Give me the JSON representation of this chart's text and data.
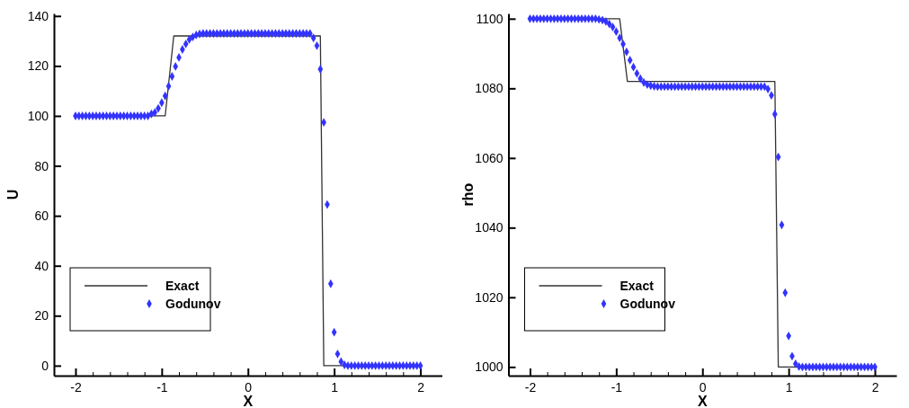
{
  "chart_data": [
    {
      "type": "scatter",
      "xlabel": "X",
      "ylabel": "U",
      "xlim": [
        -2.25,
        2.25
      ],
      "ylim": [
        -4,
        141
      ],
      "xticks": [
        -2,
        {
          "value": -1.8,
          "label": null
        },
        {
          "value": -1.6,
          "label": null
        },
        {
          "value": -1.4,
          "label": null
        },
        {
          "value": -1.2,
          "label": null
        },
        -1,
        {
          "value": -0.8,
          "label": null
        },
        {
          "value": -0.6,
          "label": null
        },
        {
          "value": -0.4,
          "label": null
        },
        {
          "value": -0.2,
          "label": null
        },
        0,
        {
          "value": 0.2,
          "label": null
        },
        {
          "value": 0.4,
          "label": null
        },
        {
          "value": 0.6,
          "label": null
        },
        {
          "value": 0.8,
          "label": null
        },
        1,
        {
          "value": 1.2,
          "label": null
        },
        {
          "value": 1.4,
          "label": null
        },
        {
          "value": 1.6,
          "label": null
        },
        {
          "value": 1.8,
          "label": null
        },
        2
      ],
      "yticks": [
        0,
        20,
        40,
        60,
        80,
        100,
        120,
        140
      ],
      "legend": "bottom left",
      "grid": false,
      "series": [
        {
          "name": "Exact",
          "type": "line",
          "color": "#333333",
          "marker": "none",
          "line_style": "solid",
          "x": [
            -2,
            -0.96,
            -0.86,
            0.84,
            0.88,
            2
          ],
          "values": [
            100,
            100,
            132,
            132,
            0,
            0
          ]
        },
        {
          "name": "Godunov",
          "color": "#3333ff",
          "marker": "diamond",
          "x": [
            -2,
            -1.96,
            -1.92,
            -1.88,
            -1.84,
            -1.8,
            -1.76,
            -1.72,
            -1.68,
            -1.64,
            -1.6,
            -1.56,
            -1.52,
            -1.48,
            -1.44,
            -1.4,
            -1.36,
            -1.32,
            -1.28,
            -1.24,
            -1.2,
            -1.16,
            -1.12,
            -1.08,
            -1.04,
            -1,
            -0.96,
            -0.92,
            -0.88,
            -0.84,
            -0.8,
            -0.76,
            -0.72,
            -0.68,
            -0.64,
            -0.6,
            -0.56,
            -0.52,
            -0.48,
            -0.44,
            -0.4,
            -0.36,
            -0.32,
            -0.28,
            -0.24,
            -0.2,
            -0.16,
            -0.12,
            -0.08,
            -0.04,
            0,
            0.04,
            0.08,
            0.12,
            0.16,
            0.2,
            0.24,
            0.28,
            0.32,
            0.36,
            0.4,
            0.44,
            0.48,
            0.52,
            0.56,
            0.6,
            0.64,
            0.68,
            0.72,
            0.76,
            0.8,
            0.84,
            0.88,
            0.92,
            0.96,
            1,
            1.04,
            1.08,
            1.12,
            1.16,
            1.2,
            1.24,
            1.28,
            1.32,
            1.36,
            1.4,
            1.44,
            1.48,
            1.52,
            1.56,
            1.6,
            1.64,
            1.68,
            1.72,
            1.76,
            1.8,
            1.84,
            1.88,
            1.92,
            1.96,
            2
          ],
          "values": [
            100,
            100,
            100,
            100,
            100,
            100,
            100,
            100,
            100,
            100,
            100,
            100,
            100,
            100,
            100,
            100,
            100,
            100,
            100,
            100,
            100,
            100,
            100.8,
            101.4,
            103.0,
            105.3,
            108.0,
            111.9,
            115.8,
            119.8,
            123.4,
            126.6,
            128.8,
            130.6,
            131.6,
            132.4,
            132.8,
            133,
            133,
            133,
            133,
            133,
            133,
            133,
            133,
            133,
            133,
            133,
            133,
            133,
            133,
            133,
            133,
            133,
            133,
            133,
            133,
            133,
            133,
            133,
            133,
            133,
            133,
            133,
            133,
            133,
            133,
            133,
            133,
            131.2,
            128.1,
            118.7,
            97.4,
            64.5,
            32.8,
            13.4,
            4.7,
            1.6,
            0.3,
            0,
            0,
            0,
            0,
            0,
            0,
            0,
            0,
            0,
            0,
            0,
            0,
            0,
            0,
            0,
            0,
            0,
            0,
            0,
            0,
            0,
            0
          ]
        }
      ]
    },
    {
      "type": "scatter",
      "xlabel": "X",
      "ylabel": "rho",
      "xlim": [
        -2.25,
        2.25
      ],
      "ylim": [
        997.5,
        1101.5
      ],
      "xticks": [
        -2,
        {
          "value": -1.8,
          "label": null
        },
        {
          "value": -1.6,
          "label": null
        },
        {
          "value": -1.4,
          "label": null
        },
        {
          "value": -1.2,
          "label": null
        },
        -1,
        {
          "value": -0.8,
          "label": null
        },
        {
          "value": -0.6,
          "label": null
        },
        {
          "value": -0.4,
          "label": null
        },
        {
          "value": -0.2,
          "label": null
        },
        0,
        {
          "value": 0.2,
          "label": null
        },
        {
          "value": 0.4,
          "label": null
        },
        {
          "value": 0.6,
          "label": null
        },
        {
          "value": 0.8,
          "label": null
        },
        1,
        {
          "value": 1.2,
          "label": null
        },
        {
          "value": 1.4,
          "label": null
        },
        {
          "value": 1.6,
          "label": null
        },
        {
          "value": 1.8,
          "label": null
        },
        2
      ],
      "yticks": [
        1000,
        1020,
        1040,
        1060,
        1080,
        1100
      ],
      "legend": "bottom left",
      "grid": false,
      "series": [
        {
          "name": "Exact",
          "type": "line",
          "color": "#333333",
          "marker": "none",
          "line_style": "solid",
          "x": [
            -2,
            -0.96,
            -0.87,
            0.84,
            0.88,
            2
          ],
          "values": [
            1100,
            1100,
            1082,
            1082,
            1000,
            1000
          ]
        },
        {
          "name": "Godunov",
          "color": "#3333ff",
          "marker": "diamond",
          "x": [
            -2,
            -1.96,
            -1.92,
            -1.88,
            -1.84,
            -1.8,
            -1.76,
            -1.72,
            -1.68,
            -1.64,
            -1.6,
            -1.56,
            -1.52,
            -1.48,
            -1.44,
            -1.4,
            -1.36,
            -1.32,
            -1.28,
            -1.24,
            -1.2,
            -1.16,
            -1.12,
            -1.08,
            -1.04,
            -1,
            -0.96,
            -0.92,
            -0.88,
            -0.84,
            -0.8,
            -0.76,
            -0.72,
            -0.68,
            -0.64,
            -0.6,
            -0.56,
            -0.52,
            -0.48,
            -0.44,
            -0.4,
            -0.36,
            -0.32,
            -0.28,
            -0.24,
            -0.2,
            -0.16,
            -0.12,
            -0.08,
            -0.04,
            0,
            0.04,
            0.08,
            0.12,
            0.16,
            0.2,
            0.24,
            0.28,
            0.32,
            0.36,
            0.4,
            0.44,
            0.48,
            0.52,
            0.56,
            0.6,
            0.64,
            0.68,
            0.72,
            0.76,
            0.8,
            0.84,
            0.88,
            0.92,
            0.96,
            1,
            1.04,
            1.08,
            1.12,
            1.16,
            1.2,
            1.24,
            1.28,
            1.32,
            1.36,
            1.4,
            1.44,
            1.48,
            1.52,
            1.56,
            1.6,
            1.64,
            1.68,
            1.72,
            1.76,
            1.8,
            1.84,
            1.88,
            1.92,
            1.96,
            2
          ],
          "values": [
            1100,
            1100,
            1100,
            1100,
            1100,
            1100,
            1100,
            1100,
            1100,
            1100,
            1100,
            1100,
            1100,
            1100,
            1100,
            1100,
            1100,
            1100,
            1100,
            1100,
            1099.8,
            1099.6,
            1099.2,
            1098.5,
            1097.6,
            1096.3,
            1094.5,
            1092.7,
            1090.5,
            1088.1,
            1086.1,
            1084.3,
            1082.8,
            1081.7,
            1081.1,
            1080.8,
            1080.6,
            1080.5,
            1080.5,
            1080.5,
            1080.5,
            1080.5,
            1080.5,
            1080.5,
            1080.5,
            1080.5,
            1080.5,
            1080.5,
            1080.5,
            1080.5,
            1080.5,
            1080.5,
            1080.5,
            1080.5,
            1080.5,
            1080.5,
            1080.5,
            1080.5,
            1080.5,
            1080.5,
            1080.5,
            1080.5,
            1080.5,
            1080.5,
            1080.5,
            1080.5,
            1080.5,
            1080.5,
            1080.5,
            1079.8,
            1078.0,
            1072.6,
            1060.3,
            1040.8,
            1021.3,
            1008.9,
            1003.1,
            1000.9,
            1000.1,
            1000,
            1000,
            1000,
            1000,
            1000,
            1000,
            1000,
            1000,
            1000,
            1000,
            1000,
            1000,
            1000,
            1000,
            1000,
            1000,
            1000,
            1000,
            1000,
            1000,
            1000,
            1000
          ]
        }
      ]
    }
  ]
}
